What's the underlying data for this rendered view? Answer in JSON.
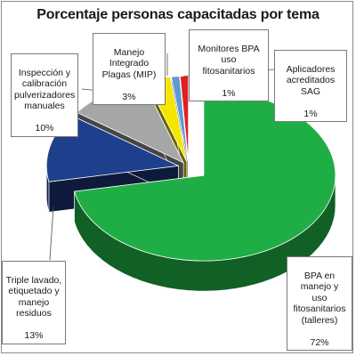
{
  "chart_data": {
    "type": "pie",
    "title": "Porcentaje personas capacitadas  por tema",
    "slices": [
      {
        "label": "BPA en manejo y\nuso fitosanitarios\n(talleres)",
        "value": 72,
        "value_label": "72%",
        "color": "#1fae45"
      },
      {
        "label": "Triple lavado,\netiquetado y\nmanejo residuos",
        "value": 13,
        "value_label": "13%",
        "color": "#1e3f8c"
      },
      {
        "label": "Inspección y\ncalibración\npulverizadores\nmanuales",
        "value": 10,
        "value_label": "10%",
        "color": "#a6a6a6"
      },
      {
        "label": "Manejo Integrado\nPlagas (MIP)",
        "value": 3,
        "value_label": "3%",
        "color": "#f5e600"
      },
      {
        "label": "Monitores BPA uso\nfitosanitarios",
        "value": 1,
        "value_label": "1%",
        "color": "#5b9bd5"
      },
      {
        "label": "Aplicadores\nacreditados  SAG",
        "value": 1,
        "value_label": "1%",
        "color": "#e02020"
      }
    ],
    "style": "3d-exploded"
  }
}
